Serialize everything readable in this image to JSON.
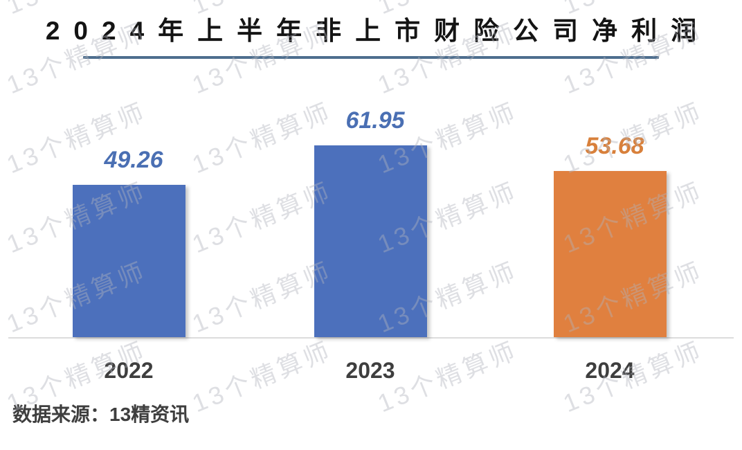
{
  "title": {
    "text": "2024年上半年非上市财险公司净利润"
  },
  "watermark": {
    "text": "13个精算师"
  },
  "footer": {
    "source": "数据来源：13精资讯"
  },
  "colors": {
    "bar_blue": "#4C70BC",
    "bar_orange": "#E0803F",
    "value_label_blue": "#4A6FB3",
    "value_label_orange": "#D8803B",
    "title_text": "#141414",
    "title_underline": "#4E6E8E",
    "axis_line": "#DCDCDC",
    "axis_text": "#3E3E3E",
    "watermark": "#B1B3BD"
  },
  "chart_data": {
    "type": "bar",
    "title": "2024年上半年非上市财险公司净利润",
    "categories": [
      "2022",
      "2023",
      "2024"
    ],
    "values": [
      49.26,
      61.95,
      53.68
    ],
    "bar_colors": [
      "#4C70BC",
      "#4C70BC",
      "#E0803F"
    ],
    "value_label_colors": [
      "#4A6FB3",
      "#4A6FB3",
      "#D8803B"
    ],
    "xlabel": "",
    "ylabel": "",
    "data_labels": true,
    "grid": false,
    "legend": "none",
    "value_axis_visible": false,
    "baseline": 0
  }
}
